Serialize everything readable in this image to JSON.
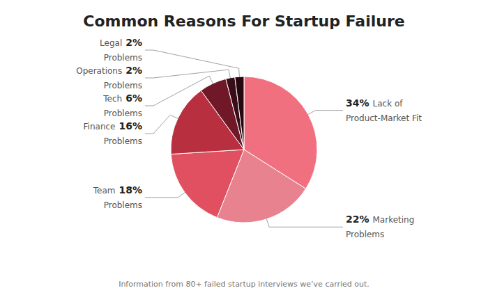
{
  "chart_data": {
    "type": "pie",
    "title": "Common Reasons For Startup Failure",
    "categories": [
      [
        "Lack of",
        "Product-Market Fit"
      ],
      [
        "Marketing",
        "Problems"
      ],
      [
        "Team",
        "Problems"
      ],
      [
        "Finance",
        "Problems"
      ],
      [
        "Tech",
        "Problems"
      ],
      [
        "Operations",
        "Problems"
      ],
      [
        "Legal",
        "Problems"
      ]
    ],
    "values": [
      34,
      22,
      18,
      16,
      6,
      2,
      2
    ],
    "value_labels": [
      "34%",
      "22%",
      "18%",
      "16%",
      "6%",
      "2%",
      "2%"
    ],
    "colors": [
      "#f07080",
      "#e8828e",
      "#e05060",
      "#b83040",
      "#701828",
      "#3a0e18",
      "#280810"
    ],
    "data_labels": true,
    "annotations": [
      "Information from 80+ failed startup interviews we’ve carried out."
    ]
  }
}
